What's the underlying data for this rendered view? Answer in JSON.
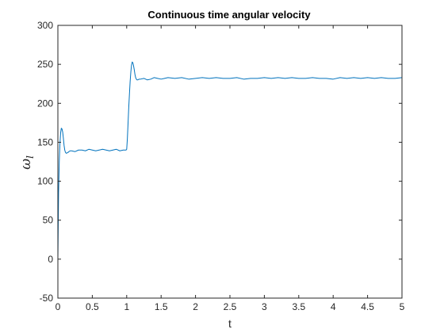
{
  "chart_data": {
    "type": "line",
    "title": "Continuous time angular velocity",
    "xlabel": "t",
    "ylabel": "ω",
    "ylabel_subscript": "l",
    "xlim": [
      0,
      5
    ],
    "ylim": [
      -50,
      300
    ],
    "x_ticks": [
      0,
      0.5,
      1,
      1.5,
      2,
      2.5,
      3,
      3.5,
      4,
      4.5,
      5
    ],
    "x_tick_labels": [
      "0",
      "0.5",
      "1",
      "1.5",
      "2",
      "2.5",
      "3",
      "3.5",
      "4",
      "4.5",
      "5"
    ],
    "y_ticks": [
      -50,
      0,
      50,
      100,
      150,
      200,
      250,
      300
    ],
    "y_tick_labels": [
      "-50",
      "0",
      "50",
      "100",
      "150",
      "200",
      "250",
      "300"
    ],
    "grid": false,
    "line_color": "#0072BD",
    "series": [
      {
        "x": [
          0,
          0.01,
          0.02,
          0.03,
          0.04,
          0.05,
          0.06,
          0.07,
          0.08,
          0.09,
          0.1,
          0.11,
          0.12,
          0.13,
          0.14,
          0.15,
          0.16,
          0.18,
          0.2,
          0.25,
          0.3,
          0.35,
          0.4,
          0.45,
          0.5,
          0.55,
          0.6,
          0.65,
          0.7,
          0.75,
          0.8,
          0.85,
          0.9,
          0.95,
          0.99,
          1.0,
          1.01,
          1.02,
          1.03,
          1.04,
          1.05,
          1.06,
          1.07,
          1.08,
          1.09,
          1.1,
          1.11,
          1.12,
          1.13,
          1.14,
          1.15,
          1.16,
          1.18,
          1.2,
          1.25,
          1.3,
          1.35,
          1.4,
          1.45,
          1.5,
          1.55,
          1.6,
          1.7,
          1.8,
          1.9,
          2.0,
          2.1,
          2.2,
          2.3,
          2.4,
          2.5,
          2.6,
          2.7,
          2.8,
          2.9,
          3.0,
          3.1,
          3.2,
          3.3,
          3.4,
          3.5,
          3.6,
          3.7,
          3.8,
          3.9,
          4.0,
          4.1,
          4.2,
          4.3,
          4.4,
          4.5,
          4.6,
          4.7,
          4.8,
          4.9,
          5.0
        ],
        "y": [
          0,
          85,
          125,
          148,
          162,
          168,
          167,
          163,
          155,
          146,
          140,
          137,
          136,
          136,
          137,
          137,
          138,
          139,
          139,
          138,
          140,
          140,
          139,
          141,
          140,
          139,
          140,
          141,
          140,
          139,
          140,
          141,
          139,
          140,
          140,
          141,
          155,
          175,
          195,
          212,
          228,
          240,
          249,
          253,
          252,
          248,
          243,
          237,
          233,
          231,
          230,
          230,
          231,
          231,
          232,
          230,
          231,
          233,
          232,
          231,
          232,
          233,
          232,
          233,
          231,
          232,
          233,
          232,
          233,
          232,
          232,
          233,
          231,
          232,
          232,
          233,
          232,
          233,
          232,
          233,
          232,
          232,
          233,
          232,
          232,
          231,
          233,
          232,
          233,
          232,
          233,
          232,
          233,
          232,
          232,
          233
        ]
      }
    ]
  }
}
